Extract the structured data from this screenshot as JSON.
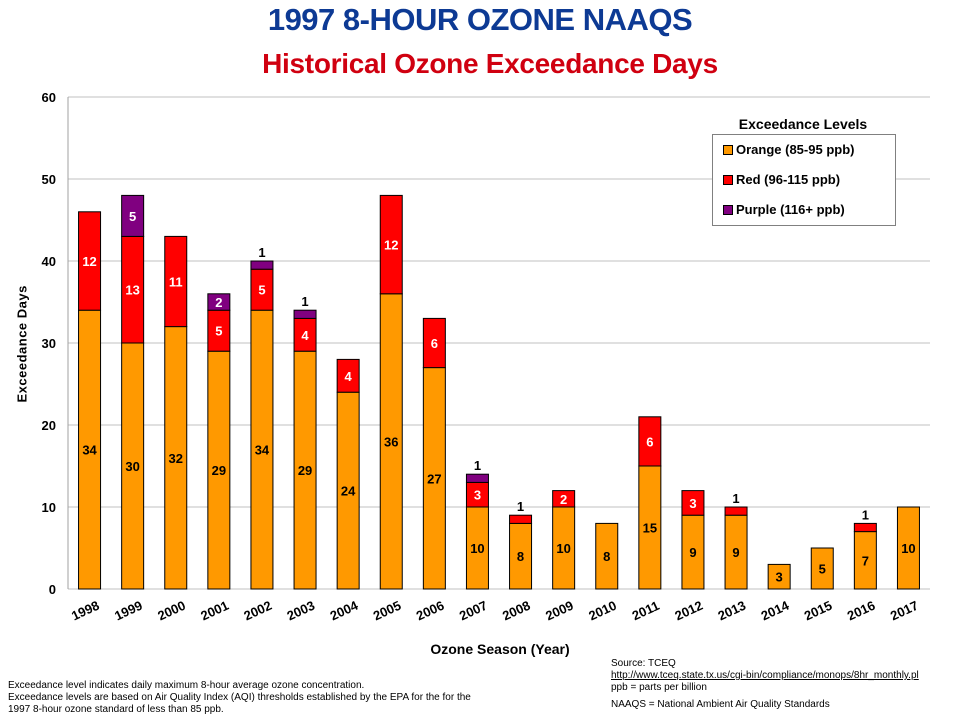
{
  "chart_data": {
    "type": "bar",
    "stacked": true,
    "title": "1997 8-HOUR OZONE NAAQS",
    "subtitle": "Historical Ozone Exceedance Days",
    "xlabel": "Ozone Season (Year)",
    "ylabel": "Exceedance Days",
    "ylim": [
      0,
      60
    ],
    "yticks": [
      0,
      10,
      20,
      30,
      40,
      50,
      60
    ],
    "grid": true,
    "legend_title": "Exceedance Levels",
    "legend_position": "top-right",
    "categories": [
      "1998",
      "1999",
      "2000",
      "2001",
      "2002",
      "2003",
      "2004",
      "2005",
      "2006",
      "2007",
      "2008",
      "2009",
      "2010",
      "2011",
      "2012",
      "2013",
      "2014",
      "2015",
      "2016",
      "2017"
    ],
    "series": [
      {
        "name": "Orange (85-95 ppb)",
        "color": "#ff9900",
        "label_color": "#000000",
        "values": [
          34,
          30,
          32,
          29,
          34,
          29,
          24,
          36,
          27,
          10,
          8,
          10,
          8,
          15,
          9,
          9,
          3,
          5,
          7,
          10
        ]
      },
      {
        "name": "Red (96-115 ppb)",
        "color": "#ff0000",
        "label_color": "#ffffff",
        "values": [
          12,
          13,
          11,
          5,
          5,
          4,
          4,
          12,
          6,
          3,
          1,
          2,
          0,
          6,
          3,
          1,
          0,
          0,
          1,
          0
        ]
      },
      {
        "name": "Purple (116+ ppb)",
        "color": "#800080",
        "label_color": "#ffffff",
        "values": [
          0,
          5,
          0,
          2,
          1,
          1,
          0,
          0,
          0,
          1,
          0,
          0,
          0,
          0,
          0,
          0,
          0,
          0,
          0,
          0
        ]
      }
    ]
  },
  "notes_left": [
    "Exceedance level indicates daily maximum  8-hour average ozone concentration.",
    "Exceedance levels are based on Air Quality Index (AQI) thresholds established by the EPA  for the  for the",
    "1997 8-hour ozone standard of less than 85 ppb."
  ],
  "notes_right": {
    "source": "Source:  TCEQ",
    "url": "http://www.tceq.state.tx.us/cgi-bin/compliance/monops/8hr_monthly.pl",
    "ppb": "ppb = parts per billion",
    "naaqs": "NAAQS = National Ambient Air Quality Standards"
  }
}
